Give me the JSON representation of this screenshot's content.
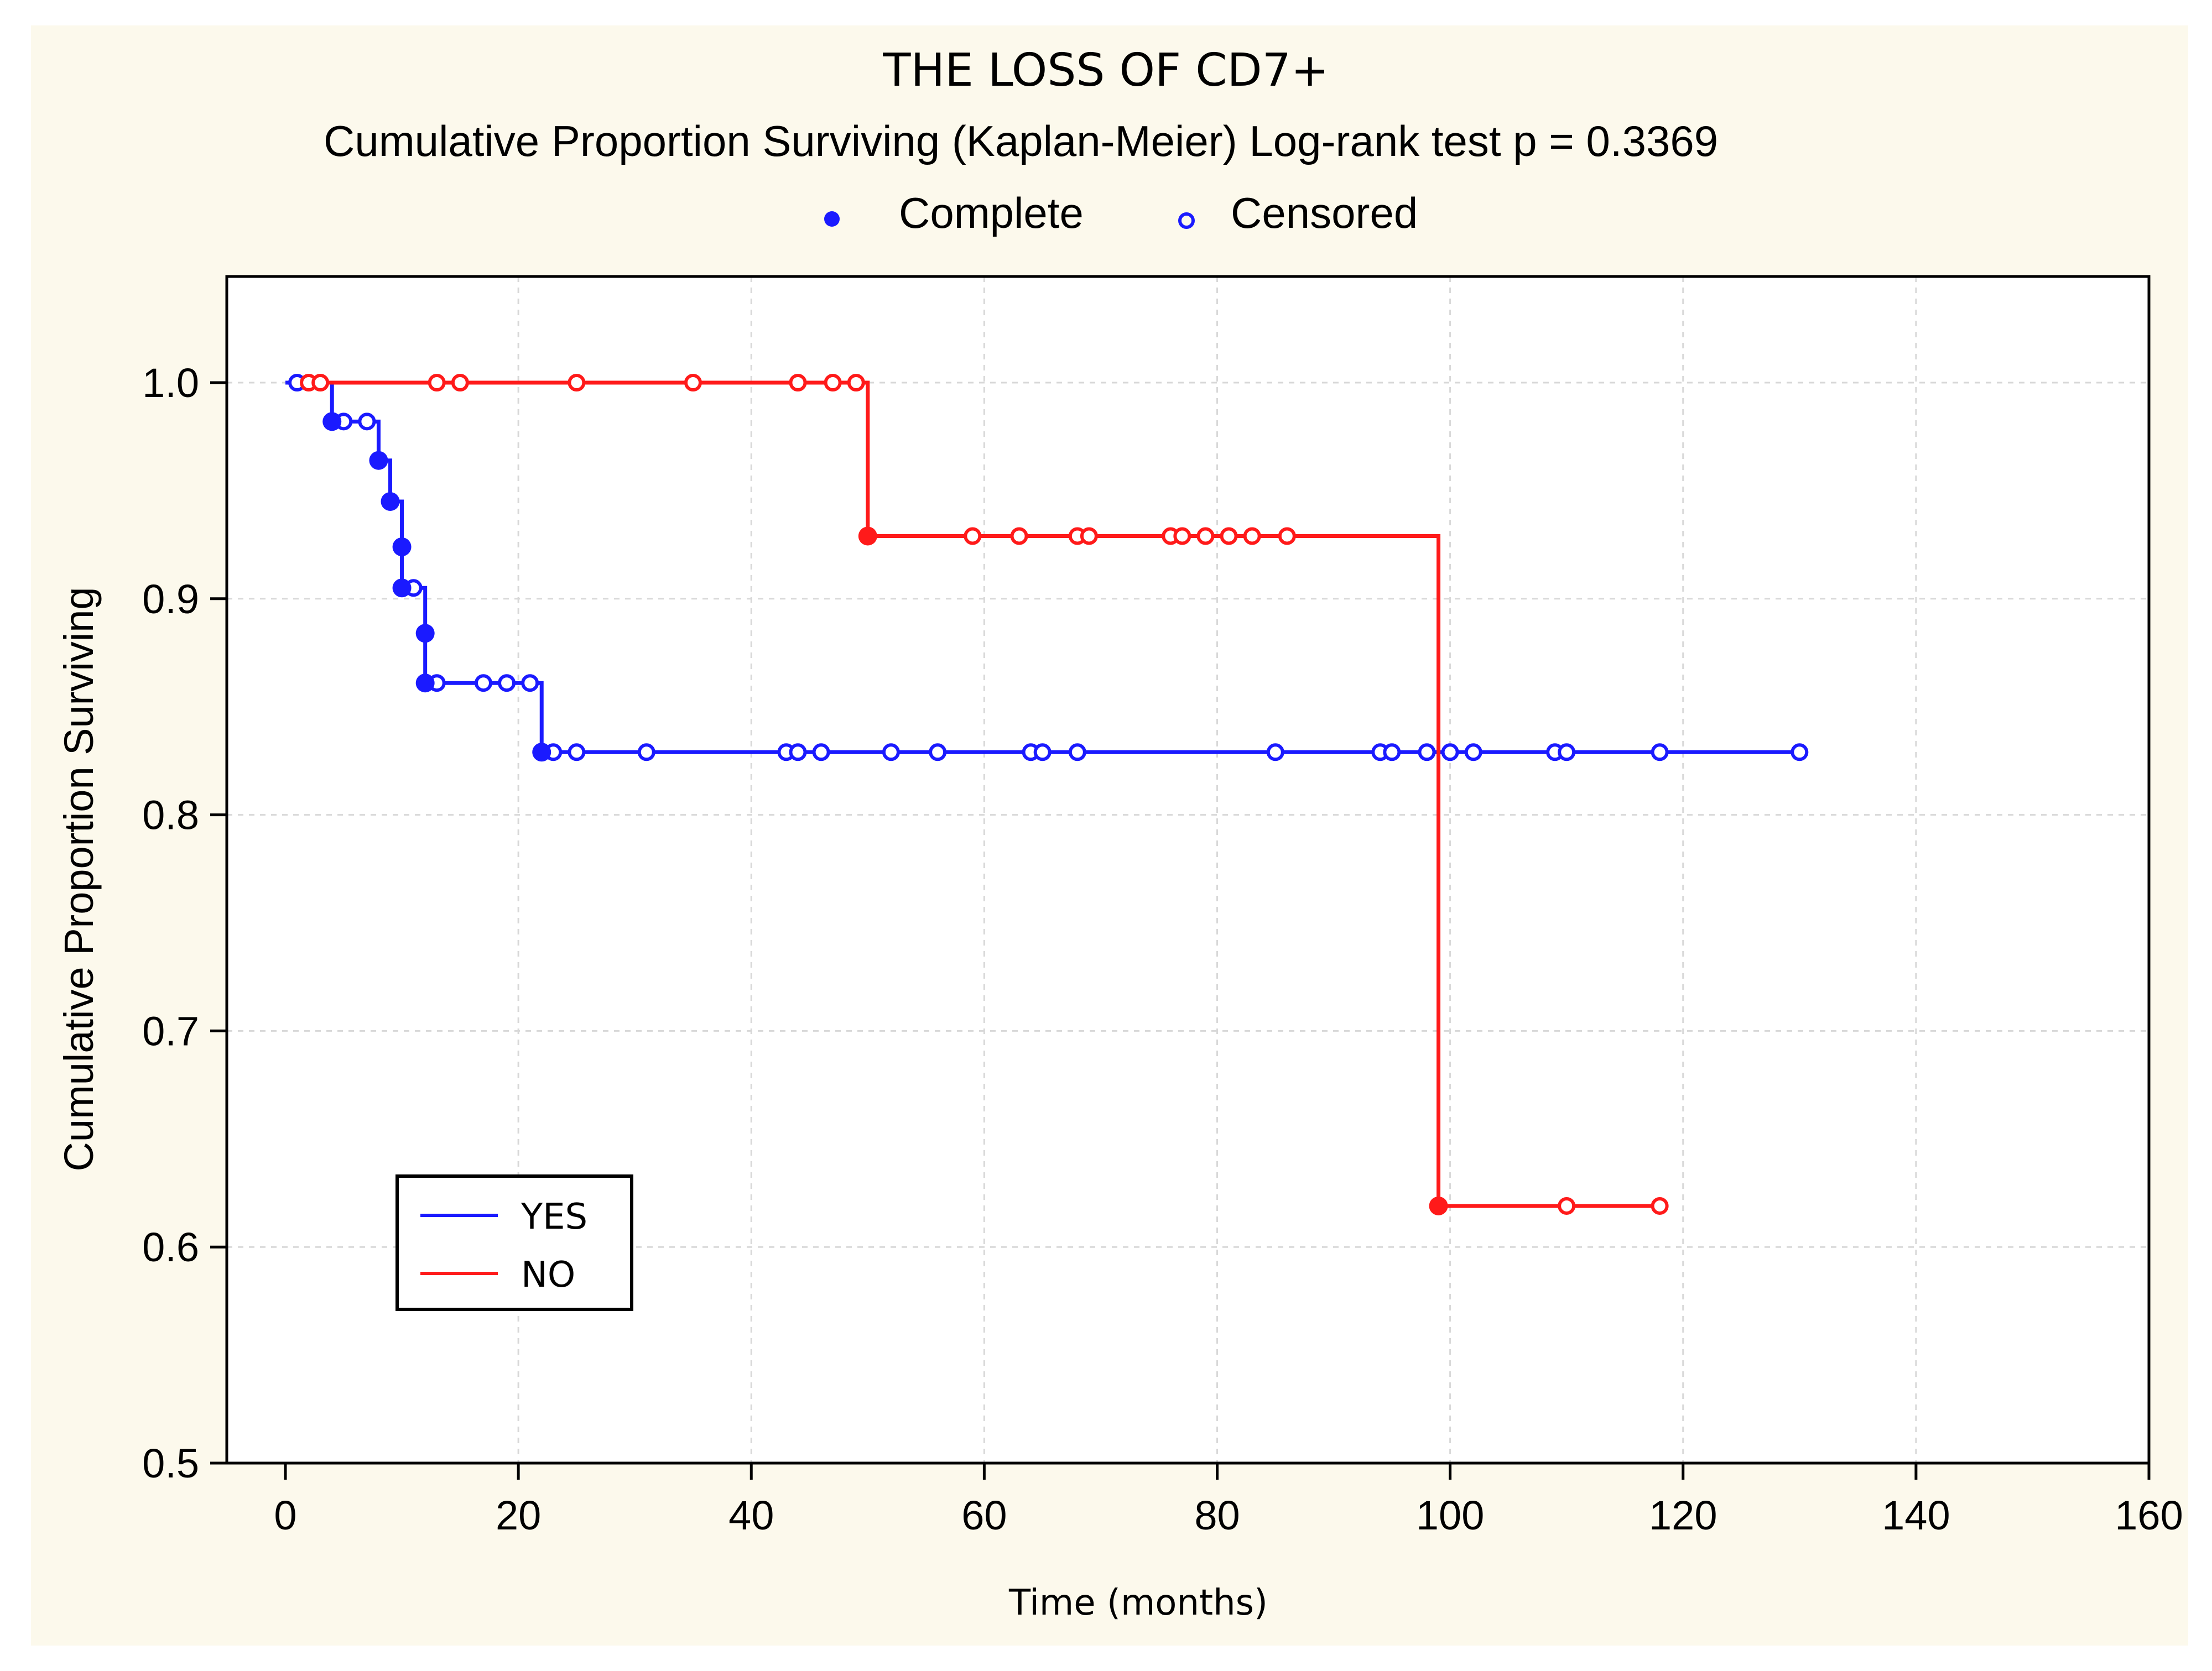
{
  "chart_data": {
    "type": "line",
    "title": "THE LOSS OF CD7+",
    "subtitle": "Cumulative Proportion Surviving (Kaplan-Meier)  Log-rank test  p = 0.3369",
    "xlabel": "Time (months)",
    "ylabel": "Cumulative Proportion Surviving",
    "xlim": [
      0,
      160
    ],
    "ylim": [
      0.5,
      1.05
    ],
    "xticks": [
      0,
      20,
      40,
      60,
      80,
      100,
      120,
      140,
      160
    ],
    "yticks": [
      0.5,
      0.6,
      0.7,
      0.8,
      0.9,
      1.0
    ],
    "ytick_labels": [
      "0.5",
      "0.6",
      "0.7",
      "0.8",
      "0.9",
      "1.0"
    ],
    "grid": true,
    "marker_legend": [
      {
        "label": "Complete",
        "marker": "filled"
      },
      {
        "label": "Censored",
        "marker": "open"
      }
    ],
    "legend_position": "bottom-left",
    "series": [
      {
        "name": "YES",
        "color": "#1a1aff",
        "steps": [
          [
            0,
            1.0
          ],
          [
            4,
            0.982
          ],
          [
            8,
            0.964
          ],
          [
            9,
            0.945
          ],
          [
            10,
            0.924
          ],
          [
            10,
            0.905
          ],
          [
            12,
            0.884
          ],
          [
            12,
            0.861
          ],
          [
            22,
            0.829
          ],
          [
            130,
            0.829
          ]
        ],
        "events": [
          [
            4,
            0.982
          ],
          [
            8,
            0.964
          ],
          [
            9,
            0.945
          ],
          [
            10,
            0.924
          ],
          [
            10,
            0.905
          ],
          [
            12,
            0.884
          ],
          [
            12,
            0.861
          ],
          [
            22,
            0.829
          ]
        ],
        "censored": [
          [
            1,
            1.0
          ],
          [
            5,
            0.982
          ],
          [
            7,
            0.982
          ],
          [
            11,
            0.905
          ],
          [
            13,
            0.861
          ],
          [
            17,
            0.861
          ],
          [
            19,
            0.861
          ],
          [
            21,
            0.861
          ],
          [
            23,
            0.829
          ],
          [
            25,
            0.829
          ],
          [
            31,
            0.829
          ],
          [
            43,
            0.829
          ],
          [
            44,
            0.829
          ],
          [
            46,
            0.829
          ],
          [
            52,
            0.829
          ],
          [
            56,
            0.829
          ],
          [
            64,
            0.829
          ],
          [
            65,
            0.829
          ],
          [
            68,
            0.829
          ],
          [
            85,
            0.829
          ],
          [
            94,
            0.829
          ],
          [
            95,
            0.829
          ],
          [
            98,
            0.829
          ],
          [
            100,
            0.829
          ],
          [
            102,
            0.829
          ],
          [
            109,
            0.829
          ],
          [
            110,
            0.829
          ],
          [
            118,
            0.829
          ],
          [
            130,
            0.829
          ]
        ]
      },
      {
        "name": "NO",
        "color": "#ff1a1a",
        "steps": [
          [
            2,
            1.0
          ],
          [
            50,
            1.0
          ],
          [
            50,
            0.929
          ],
          [
            99,
            0.929
          ],
          [
            99,
            0.619
          ],
          [
            118,
            0.619
          ]
        ],
        "events": [
          [
            50,
            0.929
          ],
          [
            99,
            0.619
          ]
        ],
        "censored": [
          [
            2,
            1.0
          ],
          [
            3,
            1.0
          ],
          [
            13,
            1.0
          ],
          [
            15,
            1.0
          ],
          [
            25,
            1.0
          ],
          [
            35,
            1.0
          ],
          [
            44,
            1.0
          ],
          [
            47,
            1.0
          ],
          [
            49,
            1.0
          ],
          [
            59,
            0.929
          ],
          [
            63,
            0.929
          ],
          [
            68,
            0.929
          ],
          [
            69,
            0.929
          ],
          [
            76,
            0.929
          ],
          [
            77,
            0.929
          ],
          [
            79,
            0.929
          ],
          [
            81,
            0.929
          ],
          [
            83,
            0.929
          ],
          [
            86,
            0.929
          ],
          [
            110,
            0.619
          ],
          [
            118,
            0.619
          ]
        ]
      }
    ]
  }
}
